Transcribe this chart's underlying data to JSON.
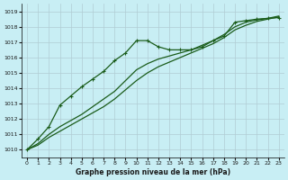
{
  "title": "Graphe pression niveau de la mer (hPa)",
  "bg_color": "#c8eef4",
  "grid_color": "#b0ccd4",
  "line_color": "#1a5c1a",
  "x_ticks": [
    0,
    1,
    2,
    3,
    4,
    5,
    6,
    7,
    8,
    9,
    10,
    11,
    12,
    13,
    14,
    15,
    16,
    17,
    18,
    19,
    20,
    21,
    22,
    23
  ],
  "y_min": 1009.5,
  "y_max": 1019.5,
  "y_ticks": [
    1010,
    1011,
    1012,
    1013,
    1014,
    1015,
    1016,
    1017,
    1018,
    1019
  ],
  "series1_with_peak": [
    1010.0,
    1010.7,
    1011.5,
    1012.9,
    1013.5,
    1014.1,
    1014.6,
    1015.1,
    1015.8,
    1016.3,
    1017.1,
    1017.1,
    1016.7,
    1016.5,
    1016.5,
    1016.5,
    1016.7,
    1017.1,
    1017.4,
    1018.3,
    1018.4,
    1018.5,
    1018.55,
    1018.6
  ],
  "series2_smooth": [
    1010.0,
    1010.4,
    1011.0,
    1011.5,
    1011.9,
    1012.3,
    1012.8,
    1013.3,
    1013.8,
    1014.5,
    1015.2,
    1015.6,
    1015.9,
    1016.1,
    1016.3,
    1016.5,
    1016.8,
    1017.1,
    1017.5,
    1018.0,
    1018.3,
    1018.45,
    1018.55,
    1018.7
  ],
  "series3_lower": [
    1010.0,
    1010.3,
    1010.8,
    1011.2,
    1011.6,
    1012.0,
    1012.4,
    1012.8,
    1013.3,
    1013.9,
    1014.5,
    1015.0,
    1015.4,
    1015.7,
    1016.0,
    1016.3,
    1016.6,
    1016.9,
    1017.3,
    1017.8,
    1018.1,
    1018.35,
    1018.5,
    1018.65
  ]
}
